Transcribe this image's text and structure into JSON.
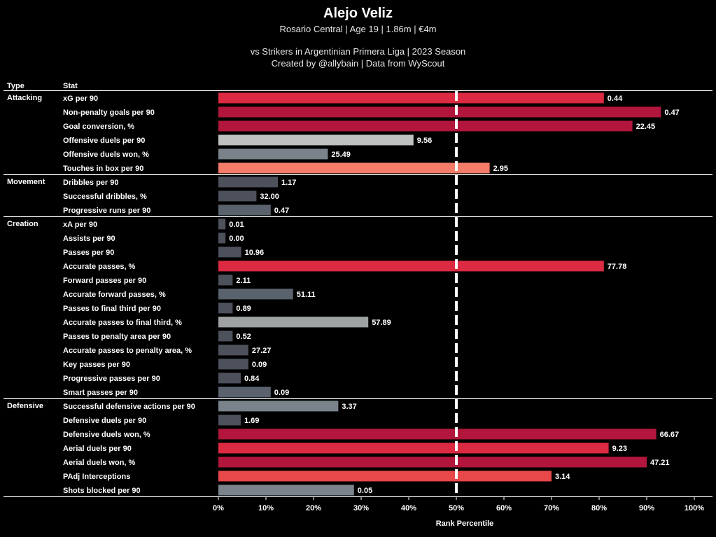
{
  "header": {
    "title": "Alejo Veliz",
    "subtitle": "Rosario Central | Age 19 | 1.86m | €4m",
    "context": "vs Strikers in Argentinian Primera Liga | 2023 Season",
    "credit": "Created by @allybain | Data from WyScout"
  },
  "chart_data": {
    "type": "bar",
    "orientation": "horizontal",
    "columns": {
      "type": "Type",
      "stat": "Stat"
    },
    "xlabel": "Rank Percentile",
    "xlim": [
      0,
      100
    ],
    "x_ticks": [
      "0%",
      "10%",
      "20%",
      "30%",
      "40%",
      "50%",
      "60%",
      "70%",
      "80%",
      "90%",
      "100%"
    ],
    "reference_line": {
      "x": 50,
      "style": "dashed"
    },
    "groups": [
      {
        "type": "Attacking",
        "rows": [
          {
            "stat": "xG per 90",
            "percentile": 81,
            "value_label": "0.44",
            "color": "#dc2a42"
          },
          {
            "stat": "Non-penalty goals per 90",
            "percentile": 93,
            "value_label": "0.47",
            "color": "#b3163c"
          },
          {
            "stat": "Goal conversion, %",
            "percentile": 87,
            "value_label": "22.45",
            "color": "#b3163c"
          },
          {
            "stat": "Offensive duels per 90",
            "percentile": 41,
            "value_label": "9.56",
            "color": "#bfc0c0"
          },
          {
            "stat": "Offensive duels won, %",
            "percentile": 23,
            "value_label": "25.49",
            "color": "#7a838c"
          },
          {
            "stat": "Touches in box per 90",
            "percentile": 57,
            "value_label": "2.95",
            "color": "#f47c68"
          }
        ]
      },
      {
        "type": "Movement",
        "rows": [
          {
            "stat": "Dribbles per 90",
            "percentile": 12.5,
            "value_label": "1.17",
            "color": "#4c515c"
          },
          {
            "stat": "Successful dribbles, %",
            "percentile": 8,
            "value_label": "32.00",
            "color": "#4c515c"
          },
          {
            "stat": "Progressive runs per 90",
            "percentile": 11,
            "value_label": "0.47",
            "color": "#5a626d"
          }
        ]
      },
      {
        "type": "Creation",
        "rows": [
          {
            "stat": "xA per 90",
            "percentile": 1.5,
            "value_label": "0.01",
            "color": "#4c515c"
          },
          {
            "stat": "Assists per 90",
            "percentile": 1.5,
            "value_label": "0.00",
            "color": "#4c515c"
          },
          {
            "stat": "Passes per 90",
            "percentile": 4.8,
            "value_label": "10.96",
            "color": "#4c515c"
          },
          {
            "stat": "Accurate passes, %",
            "percentile": 81,
            "value_label": "77.78",
            "color": "#dc2a42"
          },
          {
            "stat": "Forward passes per 90",
            "percentile": 3,
            "value_label": "2.11",
            "color": "#4c515c"
          },
          {
            "stat": "Accurate forward passes, %",
            "percentile": 15.7,
            "value_label": "51.11",
            "color": "#5a626d"
          },
          {
            "stat": "Passes to final third per 90",
            "percentile": 3,
            "value_label": "0.89",
            "color": "#4c515c"
          },
          {
            "stat": "Accurate passes to final third, %",
            "percentile": 31.5,
            "value_label": "57.89",
            "color": "#9ea2a2"
          },
          {
            "stat": "Passes to penalty area per 90",
            "percentile": 3,
            "value_label": "0.52",
            "color": "#4c515c"
          },
          {
            "stat": "Accurate passes to penalty area, %",
            "percentile": 6.3,
            "value_label": "27.27",
            "color": "#4c515c"
          },
          {
            "stat": "Key passes per 90",
            "percentile": 6.3,
            "value_label": "0.09",
            "color": "#4c515c"
          },
          {
            "stat": "Progressive passes per 90",
            "percentile": 4.7,
            "value_label": "0.84",
            "color": "#4c515c"
          },
          {
            "stat": "Smart passes per 90",
            "percentile": 11,
            "value_label": "0.09",
            "color": "#5a626d"
          }
        ]
      },
      {
        "type": "Defensive",
        "rows": [
          {
            "stat": "Successful defensive actions per 90",
            "percentile": 25.2,
            "value_label": "3.37",
            "color": "#7a838c"
          },
          {
            "stat": "Defensive duels per 90",
            "percentile": 4.7,
            "value_label": "1.69",
            "color": "#4c515c"
          },
          {
            "stat": "Defensive duels won, %",
            "percentile": 92,
            "value_label": "66.67",
            "color": "#b3163c"
          },
          {
            "stat": "Aerial duels per 90",
            "percentile": 82,
            "value_label": "9.23",
            "color": "#dc2a42"
          },
          {
            "stat": "Aerial duels won, %",
            "percentile": 90,
            "value_label": "47.21",
            "color": "#b3163c"
          },
          {
            "stat": "PAdj Interceptions",
            "percentile": 70,
            "value_label": "3.14",
            "color": "#e9484b"
          },
          {
            "stat": "Shots blocked per 90",
            "percentile": 28.5,
            "value_label": "0.05",
            "color": "#7a838c"
          }
        ]
      }
    ]
  }
}
